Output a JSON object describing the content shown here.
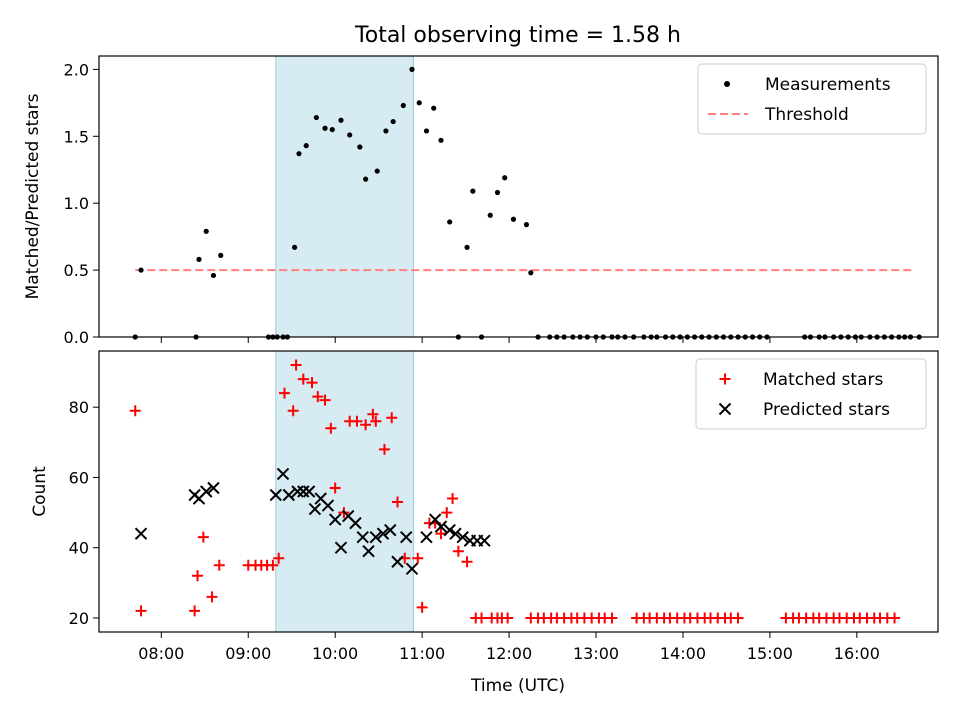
{
  "title": "Total observing time = 1.58 h",
  "xlabel": "Time (UTC)",
  "x_tick_labels": [
    "08:00",
    "09:00",
    "10:00",
    "11:00",
    "12:00",
    "13:00",
    "14:00",
    "15:00",
    "16:00"
  ],
  "x_range": [
    "07:17",
    "16:56"
  ],
  "shaded_interval": {
    "start": "09:19",
    "end": "10:54",
    "color": "#add8e6"
  },
  "chart_data": [
    {
      "type": "scatter",
      "ylabel": "Matched/Predicted stars",
      "ylim": [
        0,
        2.1
      ],
      "y_ticks": [
        0.0,
        0.5,
        1.0,
        1.5,
        2.0
      ],
      "y_tick_labels": [
        "0.0",
        "0.5",
        "1.0",
        "1.5",
        "2.0"
      ],
      "legend_position": "upper right",
      "series": [
        {
          "name": "Measurements",
          "marker": "dot",
          "color": "#000000",
          "x": [
            "07:42",
            "07:46",
            "08:24",
            "08:26",
            "08:31",
            "08:36",
            "08:41",
            "09:14",
            "09:17",
            "09:20",
            "09:24",
            "09:27",
            "09:32",
            "09:35",
            "09:40",
            "09:47",
            "09:53",
            "09:58",
            "10:04",
            "10:10",
            "10:17",
            "10:21",
            "10:29",
            "10:35",
            "10:40",
            "10:47",
            "10:53",
            "10:58",
            "11:03",
            "11:08",
            "11:13",
            "11:19",
            "11:25",
            "11:31",
            "11:35",
            "11:41",
            "11:47",
            "11:52",
            "11:57",
            "12:03",
            "12:12",
            "12:15",
            "12:20",
            "12:28",
            "12:33",
            "12:38",
            "12:44",
            "12:49",
            "12:54",
            "13:00",
            "13:05",
            "13:11",
            "13:15",
            "13:20",
            "13:26",
            "13:33",
            "13:38",
            "13:42",
            "13:48",
            "13:53",
            "13:58",
            "14:03",
            "14:08",
            "14:13",
            "14:18",
            "14:23",
            "14:28",
            "14:33",
            "14:38",
            "14:43",
            "14:48",
            "14:53",
            "14:58",
            "15:24",
            "15:28",
            "15:34",
            "15:38",
            "15:44",
            "15:49",
            "15:54",
            "15:59",
            "16:03",
            "16:09",
            "16:14",
            "16:19",
            "16:24",
            "16:29",
            "16:33",
            "16:37",
            "16:43"
          ],
          "y": [
            0.0,
            0.5,
            0.0,
            0.58,
            0.79,
            0.46,
            0.61,
            0.0,
            0.0,
            0.0,
            0.0,
            0.0,
            0.67,
            1.37,
            1.43,
            1.64,
            1.56,
            1.55,
            1.62,
            1.51,
            1.42,
            1.18,
            1.24,
            1.54,
            1.61,
            1.73,
            2.0,
            1.75,
            1.54,
            1.71,
            1.47,
            0.86,
            0.0,
            0.67,
            1.09,
            0.0,
            0.91,
            1.08,
            1.19,
            0.88,
            0.84,
            0.48,
            0.0,
            0.0,
            0.0,
            0.0,
            0.0,
            0.0,
            0.0,
            0.0,
            0.0,
            0.0,
            0.0,
            0.0,
            0.0,
            0.0,
            0.0,
            0.0,
            0.0,
            0.0,
            0.0,
            0.0,
            0.0,
            0.0,
            0.0,
            0.0,
            0.0,
            0.0,
            0.0,
            0.0,
            0.0,
            0.0,
            0.0,
            0.0,
            0.0,
            0.0,
            0.0,
            0.0,
            0.0,
            0.0,
            0.0,
            0.0,
            0.0,
            0.0,
            0.0,
            0.0,
            0.0,
            0.0,
            0.0,
            0.0
          ]
        },
        {
          "name": "Threshold",
          "marker": "dashed-line",
          "color": "#ff7f7f",
          "x": [
            "07:42",
            "16:40"
          ],
          "y": [
            0.5,
            0.5
          ]
        }
      ]
    },
    {
      "type": "scatter",
      "ylabel": "Count",
      "ylim": [
        16,
        96
      ],
      "y_ticks": [
        20,
        40,
        60,
        80
      ],
      "y_tick_labels": [
        "20",
        "40",
        "60",
        "80"
      ],
      "legend_position": "upper right",
      "series": [
        {
          "name": "Matched stars",
          "marker": "plus",
          "color": "#ff0000",
          "x": [
            "07:42",
            "07:46",
            "08:23",
            "08:25",
            "08:29",
            "08:35",
            "08:40",
            "09:00",
            "09:05",
            "09:09",
            "09:13",
            "09:17",
            "09:21",
            "09:25",
            "09:31",
            "09:33",
            "09:38",
            "09:44",
            "09:48",
            "09:53",
            "09:57",
            "10:00",
            "10:06",
            "10:10",
            "10:15",
            "10:21",
            "10:26",
            "10:28",
            "10:34",
            "10:39",
            "10:43",
            "10:48",
            "10:57",
            "10:60",
            "11:05",
            "11:09",
            "11:13",
            "11:17",
            "11:21",
            "11:25",
            "11:31",
            "11:37",
            "11:41",
            "11:48",
            "11:52",
            "11:55",
            "11:59",
            "12:15",
            "12:20",
            "12:24",
            "12:29",
            "12:33",
            "12:38",
            "12:43",
            "12:47",
            "12:52",
            "12:57",
            "13:02",
            "13:06",
            "13:11",
            "13:28",
            "13:33",
            "13:37",
            "13:42",
            "13:47",
            "13:51",
            "13:56",
            "14:01",
            "14:05",
            "14:10",
            "14:15",
            "14:19",
            "14:24",
            "14:29",
            "14:33",
            "14:38",
            "15:11",
            "15:16",
            "15:20",
            "15:25",
            "15:30",
            "15:34",
            "15:39",
            "15:44",
            "15:48",
            "15:53",
            "15:58",
            "16:02",
            "16:07",
            "16:12",
            "16:16",
            "16:21",
            "16:26"
          ],
          "y": [
            79,
            22,
            22,
            32,
            43,
            26,
            35,
            35,
            35,
            35,
            35,
            35,
            37,
            84,
            79,
            92,
            88,
            87,
            83,
            82,
            74,
            57,
            50,
            76,
            76,
            75,
            78,
            76,
            68,
            77,
            53,
            37,
            37,
            23,
            47,
            47,
            44,
            50,
            54,
            39,
            36,
            20,
            20,
            20,
            20,
            20,
            20,
            20,
            20,
            20,
            20,
            20,
            20,
            20,
            20,
            20,
            20,
            20,
            20,
            20,
            20,
            20,
            20,
            20,
            20,
            20,
            20,
            20,
            20,
            20,
            20,
            20,
            20,
            20,
            20,
            20,
            20,
            20,
            20,
            20,
            20,
            20,
            20,
            20,
            20,
            20,
            20,
            20,
            20,
            20,
            20,
            20,
            20
          ]
        },
        {
          "name": "Predicted stars",
          "marker": "x",
          "color": "#000000",
          "x": [
            "07:46",
            "08:23",
            "08:26",
            "08:31",
            "08:36",
            "09:19",
            "09:24",
            "09:28",
            "09:34",
            "09:38",
            "09:42",
            "09:46",
            "09:50",
            "09:55",
            "10:00",
            "10:04",
            "10:09",
            "10:14",
            "10:19",
            "10:23",
            "10:28",
            "10:33",
            "10:38",
            "10:43",
            "10:49",
            "10:53",
            "11:03",
            "11:09",
            "11:13",
            "11:19",
            "11:23",
            "11:28",
            "11:33",
            "11:38",
            "11:43"
          ],
          "y": [
            44,
            55,
            54,
            56,
            57,
            55,
            61,
            55,
            56,
            56,
            56,
            51,
            54,
            52,
            48,
            40,
            49,
            47,
            43,
            39,
            43,
            44,
            45,
            36,
            43,
            34,
            43,
            48,
            46,
            45,
            44,
            43,
            42,
            42,
            42
          ]
        }
      ]
    }
  ]
}
